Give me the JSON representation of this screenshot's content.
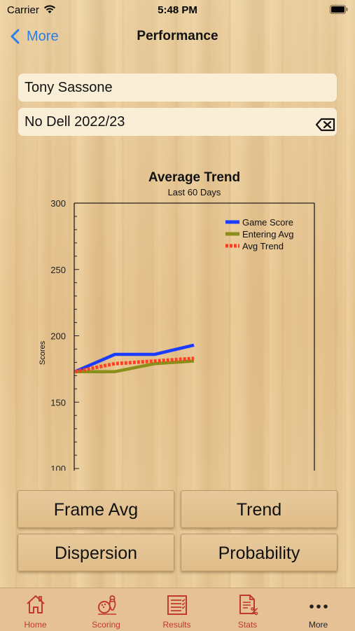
{
  "status_bar": {
    "carrier": "Carrier",
    "time": "5:48 PM"
  },
  "nav": {
    "back_label": "More",
    "title": "Performance"
  },
  "fields": {
    "bowler": "Tony Sassone",
    "league": "No Dell 2022/23"
  },
  "chart_data": {
    "type": "line",
    "title": "Average Trend",
    "subtitle": "Last 60 Days",
    "ylabel": "Scores",
    "ylim": [
      100,
      300
    ],
    "yticks": [
      100,
      150,
      200,
      250,
      300
    ],
    "y_minor_step": 10,
    "x": [
      0,
      1,
      2,
      3
    ],
    "series": [
      {
        "name": "Game Score",
        "color": "#1a3cff",
        "values": [
          173,
          186,
          186,
          193
        ]
      },
      {
        "name": "Entering Avg",
        "color": "#8a8f1a",
        "values": [
          173,
          173,
          179,
          181
        ]
      },
      {
        "name": "Avg Trend",
        "color": "#ff3b1f",
        "dashed": true,
        "values": [
          173,
          179,
          181,
          183
        ]
      }
    ],
    "legend_position": "top-right",
    "grid": false
  },
  "buttons": {
    "frame_avg": "Frame Avg",
    "trend": "Trend",
    "dispersion": "Dispersion",
    "probability": "Probability"
  },
  "tabs": [
    {
      "label": "Home",
      "icon": "home-icon"
    },
    {
      "label": "Scoring",
      "icon": "bowling-icon"
    },
    {
      "label": "Results",
      "icon": "scoresheet-icon"
    },
    {
      "label": "Stats",
      "icon": "stats-document-icon"
    },
    {
      "label": "More",
      "icon": "more-dots-icon"
    }
  ],
  "colors": {
    "accent": "#2b7de9",
    "tab_inactive": "#c0392b",
    "tab_active": "#222222"
  }
}
